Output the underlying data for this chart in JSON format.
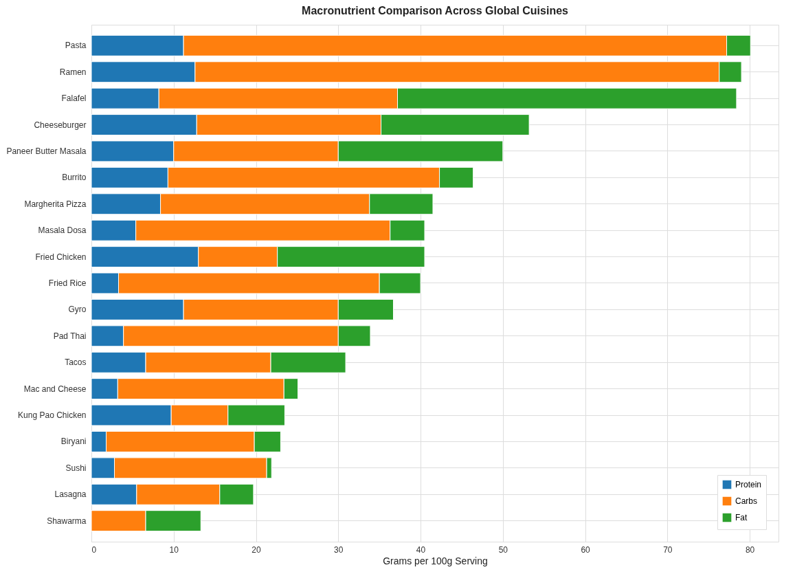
{
  "chart_data": {
    "type": "bar",
    "orientation": "horizontal",
    "stacked": true,
    "title": "Macronutrient Comparison Across Global Cuisines",
    "xlabel": "Grams per 100g Serving",
    "categories": [
      "Pasta",
      "Ramen",
      "Falafel",
      "Cheeseburger",
      "Paneer Butter Masala",
      "Burrito",
      "Margherita Pizza",
      "Masala Dosa",
      "Fried Chicken",
      "Fried Rice",
      "Gyro",
      "Pad Thai",
      "Tacos",
      "Mac and Cheese",
      "Kung Pao Chicken",
      "Biryani",
      "Sushi",
      "Lasagna",
      "Shawarma"
    ],
    "series": [
      {
        "name": "Protein",
        "color": "#1f77b4",
        "values": [
          11.2,
          12.6,
          8.2,
          12.8,
          10.0,
          9.3,
          8.4,
          5.4,
          13.0,
          3.3,
          11.2,
          3.9,
          6.6,
          3.2,
          9.7,
          1.8,
          2.8,
          5.5,
          0
        ]
      },
      {
        "name": "Carbs",
        "color": "#ff7f0e",
        "values": [
          66.0,
          63.7,
          29.0,
          22.4,
          20.0,
          33.0,
          25.4,
          30.9,
          9.6,
          31.7,
          18.8,
          26.1,
          15.2,
          20.2,
          6.9,
          18.0,
          18.5,
          10.1,
          6.6
        ]
      },
      {
        "name": "Fat",
        "color": "#2ca02c",
        "values": [
          2.9,
          2.7,
          41.2,
          18.0,
          20.0,
          4.1,
          7.7,
          4.2,
          17.9,
          5.0,
          6.7,
          3.9,
          9.1,
          1.7,
          6.9,
          3.2,
          0.6,
          4.1,
          6.7
        ]
      }
    ],
    "xlim": [
      0,
      83.5
    ],
    "xticks": [
      0,
      10,
      20,
      30,
      40,
      50,
      60,
      70,
      80
    ],
    "grid": true,
    "legend": "bottom right"
  }
}
